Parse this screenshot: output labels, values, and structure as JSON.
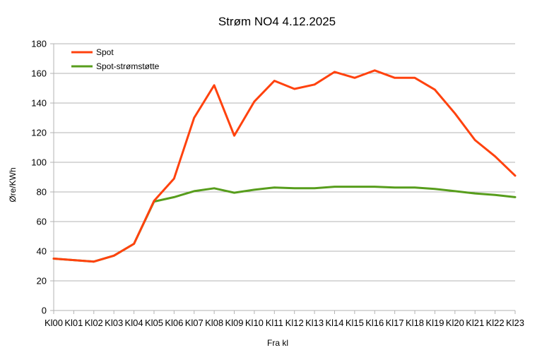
{
  "chart_data": {
    "type": "line",
    "title": "Strøm NO4 4.12.2025",
    "xlabel": "Fra kl",
    "ylabel": "Øre/KWh",
    "ylim": [
      0,
      180
    ],
    "yticks": [
      0,
      20,
      40,
      60,
      80,
      100,
      120,
      140,
      160,
      180
    ],
    "grid": true,
    "legend_position": "top-left",
    "categories": [
      "Kl00",
      "Kl01",
      "Kl02",
      "Kl03",
      "Kl04",
      "Kl05",
      "Kl06",
      "Kl07",
      "Kl08",
      "Kl09",
      "Kl10",
      "Kl11",
      "Kl12",
      "Kl13",
      "Kl14",
      "Kl15",
      "Kl16",
      "Kl17",
      "Kl18",
      "Kl19",
      "Kl20",
      "Kl21",
      "Kl22",
      "Kl23"
    ],
    "series": [
      {
        "name": "Spot",
        "color": "#ff420e",
        "values": [
          35,
          34,
          33,
          37,
          45,
          74,
          89,
          130,
          152,
          118,
          141,
          155,
          149.5,
          152.5,
          161,
          157,
          162,
          157,
          157,
          149,
          133,
          115,
          104,
          91
        ]
      },
      {
        "name": "Spot-strømstøtte",
        "color": "#579d1c",
        "values": [
          35,
          34,
          33,
          37,
          45,
          73.5,
          76.5,
          80.5,
          82.5,
          79.5,
          81.5,
          83,
          82.5,
          82.5,
          83.5,
          83.5,
          83.5,
          83,
          83,
          82,
          80.5,
          79,
          78,
          76.5
        ]
      }
    ]
  }
}
